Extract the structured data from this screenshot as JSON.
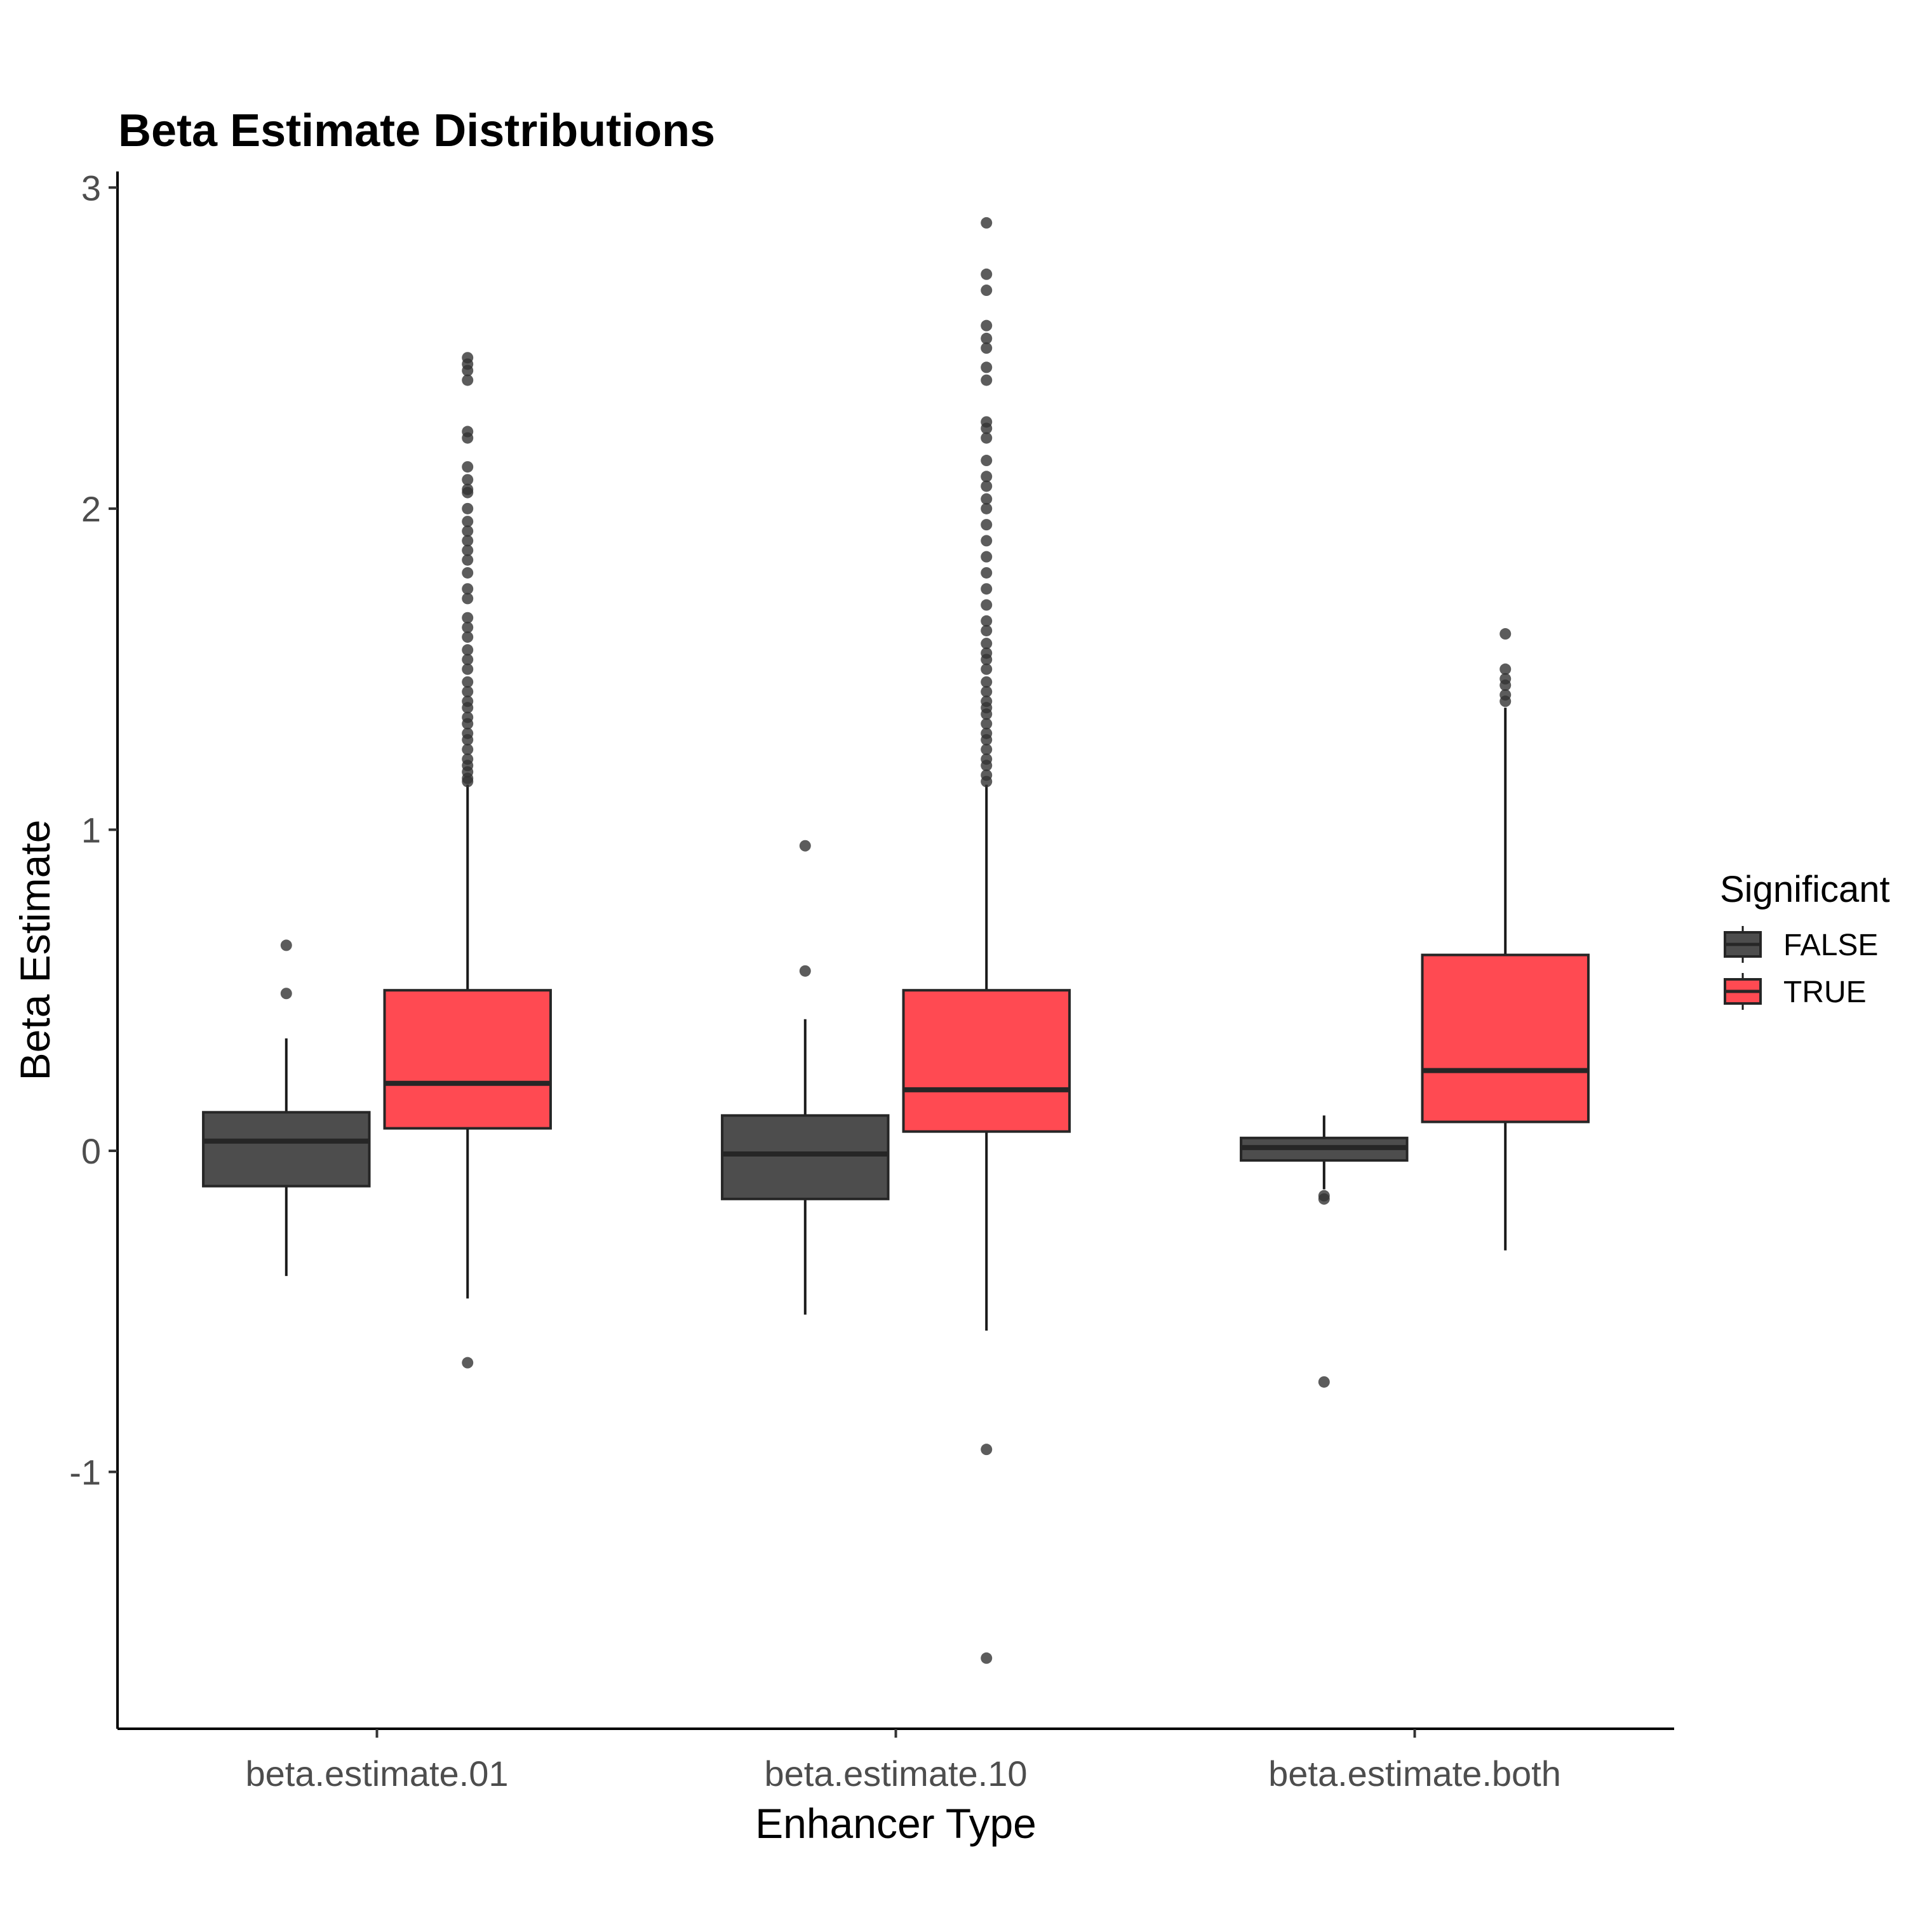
{
  "chart_data": {
    "type": "box",
    "title": "Beta Estimate Distributions",
    "xlabel": "Enhancer Type",
    "ylabel": "Beta Estimate",
    "categories": [
      "beta.estimate.01",
      "beta.estimate.10",
      "beta.estimate.both"
    ],
    "ylim": [
      -1.8,
      3.05
    ],
    "yticks": [
      -1,
      0,
      1,
      2,
      3
    ],
    "grid": false,
    "legend": {
      "title": "Significant",
      "position": "right",
      "entries": [
        "FALSE",
        "TRUE"
      ]
    },
    "series": [
      {
        "name": "FALSE",
        "color": "#4d4d4d",
        "boxes": [
          {
            "whisker_low": -0.39,
            "q1": -0.11,
            "median": 0.03,
            "q3": 0.12,
            "whisker_high": 0.35,
            "outliers": [
              0.64,
              0.49
            ]
          },
          {
            "whisker_low": -0.51,
            "q1": -0.15,
            "median": -0.01,
            "q3": 0.11,
            "whisker_high": 0.41,
            "outliers": [
              0.95,
              0.56
            ]
          },
          {
            "whisker_low": -0.12,
            "q1": -0.03,
            "median": 0.01,
            "q3": 0.04,
            "whisker_high": 0.11,
            "outliers": [
              -0.14,
              -0.15,
              -0.72
            ]
          }
        ]
      },
      {
        "name": "TRUE",
        "color": "#ff4a52",
        "boxes": [
          {
            "whisker_low": -0.46,
            "q1": 0.07,
            "median": 0.21,
            "q3": 0.5,
            "whisker_high": 1.14,
            "outliers": [
              -0.66,
              1.15,
              1.16,
              1.18,
              1.2,
              1.22,
              1.25,
              1.28,
              1.3,
              1.33,
              1.35,
              1.38,
              1.4,
              1.43,
              1.46,
              1.5,
              1.53,
              1.56,
              1.6,
              1.63,
              1.66,
              1.72,
              1.75,
              1.8,
              1.84,
              1.87,
              1.9,
              1.93,
              1.96,
              2.0,
              2.05,
              2.06,
              2.09,
              2.13,
              2.22,
              2.24,
              2.4,
              2.43,
              2.45,
              2.47
            ]
          },
          {
            "whisker_low": -0.56,
            "q1": 0.06,
            "median": 0.19,
            "q3": 0.5,
            "whisker_high": 1.14,
            "outliers": [
              -0.93,
              -1.58,
              1.15,
              1.17,
              1.2,
              1.22,
              1.25,
              1.28,
              1.3,
              1.33,
              1.36,
              1.38,
              1.4,
              1.43,
              1.46,
              1.5,
              1.53,
              1.55,
              1.58,
              1.62,
              1.65,
              1.7,
              1.75,
              1.8,
              1.85,
              1.9,
              1.95,
              2.0,
              2.03,
              2.07,
              2.1,
              2.15,
              2.22,
              2.25,
              2.27,
              2.4,
              2.44,
              2.5,
              2.53,
              2.57,
              2.68,
              2.73,
              2.89
            ]
          },
          {
            "whisker_low": -0.31,
            "q1": 0.09,
            "median": 0.25,
            "q3": 0.61,
            "whisker_high": 1.38,
            "outliers": [
              1.4,
              1.42,
              1.45,
              1.47,
              1.5,
              1.61
            ]
          }
        ]
      }
    ]
  }
}
